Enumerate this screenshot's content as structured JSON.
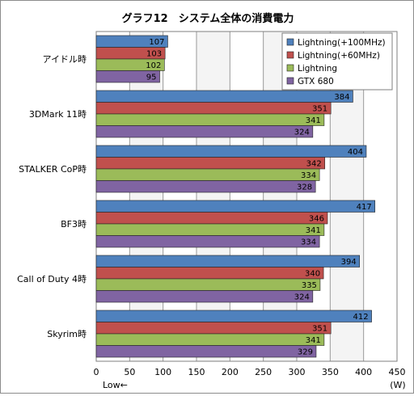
{
  "chart_data": {
    "type": "bar",
    "orientation": "horizontal",
    "title": "グラフ12　システム全体の消費電力",
    "categories": [
      "アイドル時",
      "3DMark 11時",
      "STALKER  CoP時",
      "BF3時",
      "Call of Duty 4時",
      "Skyrim時"
    ],
    "series": [
      {
        "name": "Lightning(+100MHz)",
        "color": "#4f81bd",
        "values": [
          107,
          384,
          404,
          417,
          394,
          412
        ]
      },
      {
        "name": "Lightning(+60MHz)",
        "color": "#c0504d",
        "values": [
          103,
          351,
          342,
          346,
          340,
          351
        ]
      },
      {
        "name": "Lightning",
        "color": "#9bbb59",
        "values": [
          102,
          341,
          334,
          341,
          335,
          341
        ]
      },
      {
        "name": "GTX 680",
        "color": "#8064a2",
        "values": [
          95,
          324,
          328,
          334,
          324,
          329
        ]
      }
    ],
    "xlim": [
      0,
      450
    ],
    "xticks": [
      "0",
      "50",
      "100",
      "150",
      "200",
      "250",
      "300",
      "350",
      "400",
      "450"
    ],
    "unit_label": "(W)",
    "direction_label": "Low←",
    "grid": true,
    "legend_position": "top-right"
  }
}
